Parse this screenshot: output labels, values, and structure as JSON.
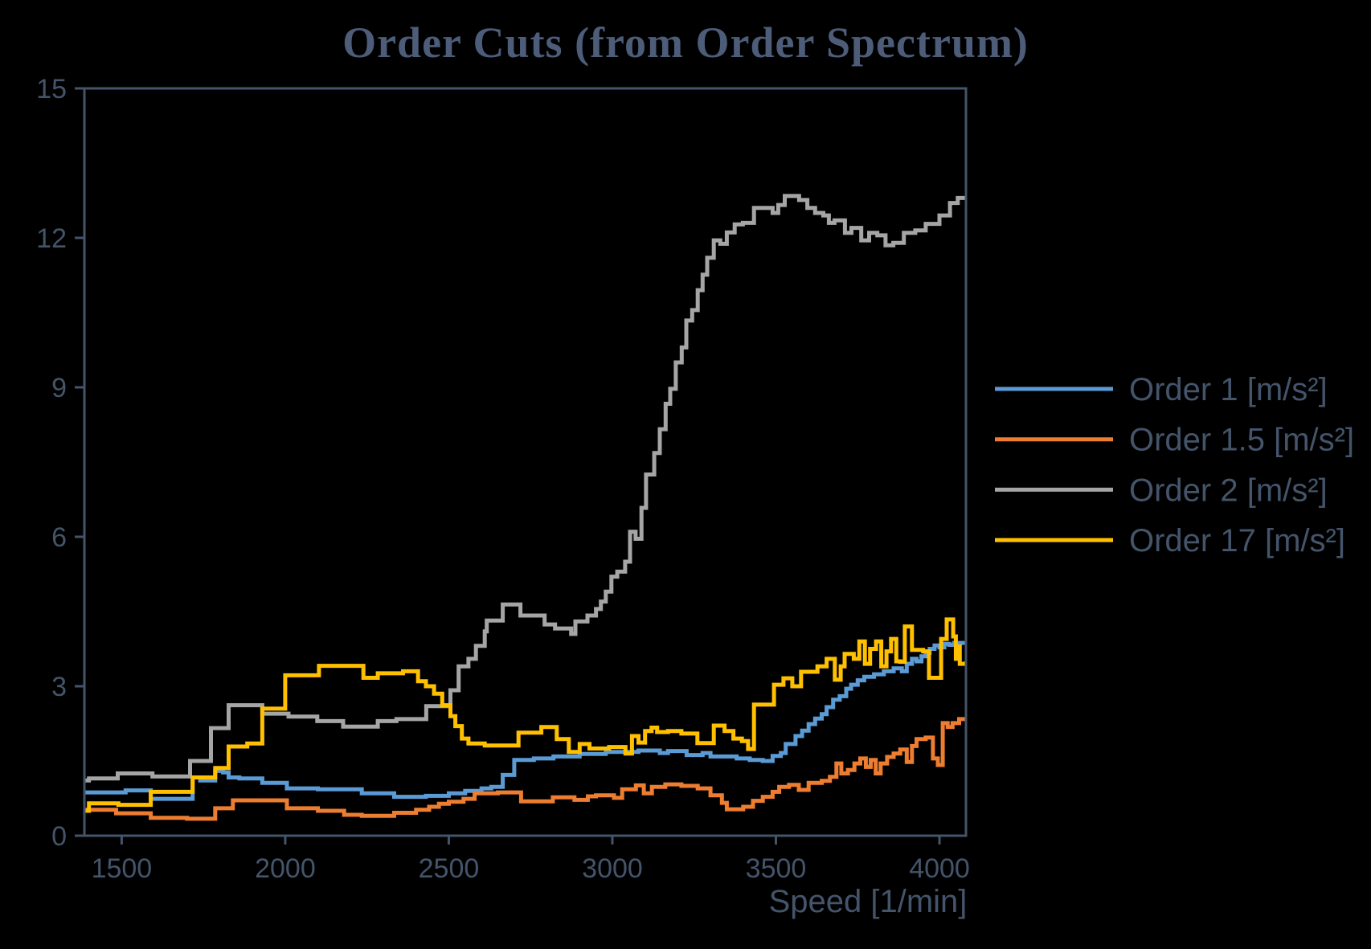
{
  "chart_data": {
    "type": "line",
    "step": true,
    "title": "Order Cuts (from Order Spectrum)",
    "xlabel": "Speed [1/min]",
    "ylabel": "",
    "xlim": [
      1386,
      4081
    ],
    "ylim": [
      0,
      15
    ],
    "x_ticks": [
      1500,
      2000,
      2500,
      3000,
      3500,
      4000
    ],
    "y_ticks": [
      0,
      3,
      6,
      9,
      12,
      15
    ],
    "grid": false,
    "legend_position": "right",
    "background_color": "#000000",
    "axis_color": "#44546A",
    "title_color": "#4D5C78",
    "series": [
      {
        "name": "Order 1 [m/s²]",
        "color": "#5B9BD5",
        "points": [
          [
            1386,
            0.87
          ],
          [
            1512,
            0.91
          ],
          [
            1589,
            0.74
          ],
          [
            1717,
            1.17
          ],
          [
            1740,
            1.11
          ],
          [
            1786,
            1.3
          ],
          [
            1810,
            1.27
          ],
          [
            1827,
            1.17
          ],
          [
            1860,
            1.15
          ],
          [
            1930,
            1.06
          ],
          [
            2005,
            0.95
          ],
          [
            2100,
            0.93
          ],
          [
            2234,
            0.85
          ],
          [
            2333,
            0.78
          ],
          [
            2430,
            0.8
          ],
          [
            2500,
            0.85
          ],
          [
            2550,
            0.9
          ],
          [
            2600,
            0.95
          ],
          [
            2630,
            0.98
          ],
          [
            2665,
            1.22
          ],
          [
            2700,
            1.52
          ],
          [
            2760,
            1.55
          ],
          [
            2820,
            1.59
          ],
          [
            2900,
            1.64
          ],
          [
            2980,
            1.68
          ],
          [
            3080,
            1.71
          ],
          [
            3145,
            1.66
          ],
          [
            3170,
            1.7
          ],
          [
            3227,
            1.62
          ],
          [
            3276,
            1.66
          ],
          [
            3300,
            1.59
          ],
          [
            3380,
            1.55
          ],
          [
            3420,
            1.52
          ],
          [
            3460,
            1.5
          ],
          [
            3490,
            1.6
          ],
          [
            3515,
            1.66
          ],
          [
            3530,
            1.84
          ],
          [
            3560,
            2.0
          ],
          [
            3580,
            2.11
          ],
          [
            3600,
            2.24
          ],
          [
            3620,
            2.35
          ],
          [
            3640,
            2.44
          ],
          [
            3655,
            2.58
          ],
          [
            3675,
            2.73
          ],
          [
            3695,
            2.8
          ],
          [
            3715,
            2.95
          ],
          [
            3730,
            3.03
          ],
          [
            3750,
            3.12
          ],
          [
            3770,
            3.19
          ],
          [
            3800,
            3.24
          ],
          [
            3830,
            3.3
          ],
          [
            3860,
            3.36
          ],
          [
            3885,
            3.3
          ],
          [
            3900,
            3.45
          ],
          [
            3916,
            3.55
          ],
          [
            3930,
            3.5
          ],
          [
            3945,
            3.6
          ],
          [
            3958,
            3.67
          ],
          [
            3970,
            3.75
          ],
          [
            3985,
            3.82
          ],
          [
            4000,
            3.78
          ],
          [
            4015,
            3.85
          ],
          [
            4030,
            3.83
          ],
          [
            4045,
            3.87
          ],
          [
            4081,
            3.9
          ]
        ]
      },
      {
        "name": "Order 1.5 [m/s²]",
        "color": "#ED7D31",
        "points": [
          [
            1386,
            0.52
          ],
          [
            1483,
            0.45
          ],
          [
            1589,
            0.36
          ],
          [
            1700,
            0.34
          ],
          [
            1786,
            0.55
          ],
          [
            1840,
            0.71
          ],
          [
            2005,
            0.55
          ],
          [
            2100,
            0.5
          ],
          [
            2180,
            0.42
          ],
          [
            2234,
            0.4
          ],
          [
            2333,
            0.46
          ],
          [
            2400,
            0.52
          ],
          [
            2440,
            0.58
          ],
          [
            2470,
            0.64
          ],
          [
            2500,
            0.68
          ],
          [
            2545,
            0.74
          ],
          [
            2579,
            0.85
          ],
          [
            2650,
            0.87
          ],
          [
            2721,
            0.69
          ],
          [
            2818,
            0.77
          ],
          [
            2884,
            0.72
          ],
          [
            2925,
            0.79
          ],
          [
            2950,
            0.81
          ],
          [
            3005,
            0.76
          ],
          [
            3030,
            0.93
          ],
          [
            3072,
            1.01
          ],
          [
            3096,
            0.85
          ],
          [
            3121,
            0.98
          ],
          [
            3162,
            1.03
          ],
          [
            3211,
            1.0
          ],
          [
            3261,
            0.95
          ],
          [
            3300,
            0.81
          ],
          [
            3335,
            0.66
          ],
          [
            3350,
            0.53
          ],
          [
            3400,
            0.58
          ],
          [
            3430,
            0.7
          ],
          [
            3460,
            0.78
          ],
          [
            3490,
            0.88
          ],
          [
            3510,
            0.98
          ],
          [
            3540,
            1.02
          ],
          [
            3570,
            0.92
          ],
          [
            3600,
            1.06
          ],
          [
            3640,
            1.1
          ],
          [
            3665,
            1.18
          ],
          [
            3685,
            1.45
          ],
          [
            3700,
            1.25
          ],
          [
            3720,
            1.32
          ],
          [
            3740,
            1.45
          ],
          [
            3758,
            1.55
          ],
          [
            3775,
            1.38
          ],
          [
            3790,
            1.52
          ],
          [
            3805,
            1.25
          ],
          [
            3820,
            1.45
          ],
          [
            3840,
            1.58
          ],
          [
            3860,
            1.65
          ],
          [
            3880,
            1.73
          ],
          [
            3900,
            1.48
          ],
          [
            3916,
            1.8
          ],
          [
            3930,
            1.94
          ],
          [
            3958,
            1.97
          ],
          [
            3980,
            1.55
          ],
          [
            3995,
            1.42
          ],
          [
            4010,
            2.26
          ],
          [
            4025,
            2.18
          ],
          [
            4040,
            2.26
          ],
          [
            4060,
            2.34
          ],
          [
            4081,
            2.34
          ]
        ]
      },
      {
        "name": "Order 2 [m/s²]",
        "color": "#A5A5A5",
        "points": [
          [
            1386,
            1.11
          ],
          [
            1400,
            1.15
          ],
          [
            1488,
            1.25
          ],
          [
            1594,
            1.19
          ],
          [
            1709,
            1.5
          ],
          [
            1773,
            2.16
          ],
          [
            1827,
            2.62
          ],
          [
            1930,
            2.45
          ],
          [
            2010,
            2.39
          ],
          [
            2098,
            2.3
          ],
          [
            2177,
            2.19
          ],
          [
            2283,
            2.3
          ],
          [
            2340,
            2.34
          ],
          [
            2431,
            2.6
          ],
          [
            2505,
            2.92
          ],
          [
            2530,
            3.4
          ],
          [
            2560,
            3.55
          ],
          [
            2583,
            3.81
          ],
          [
            2610,
            4.1
          ],
          [
            2616,
            4.32
          ],
          [
            2665,
            4.64
          ],
          [
            2719,
            4.42
          ],
          [
            2793,
            4.24
          ],
          [
            2825,
            4.16
          ],
          [
            2874,
            4.05
          ],
          [
            2887,
            4.3
          ],
          [
            2924,
            4.42
          ],
          [
            2950,
            4.55
          ],
          [
            2965,
            4.7
          ],
          [
            2980,
            4.9
          ],
          [
            2997,
            5.2
          ],
          [
            3015,
            5.3
          ],
          [
            3039,
            5.5
          ],
          [
            3054,
            6.1
          ],
          [
            3071,
            5.96
          ],
          [
            3089,
            6.58
          ],
          [
            3103,
            7.25
          ],
          [
            3128,
            7.68
          ],
          [
            3145,
            8.16
          ],
          [
            3163,
            8.67
          ],
          [
            3177,
            8.97
          ],
          [
            3194,
            9.5
          ],
          [
            3212,
            9.8
          ],
          [
            3226,
            10.34
          ],
          [
            3244,
            10.55
          ],
          [
            3261,
            10.95
          ],
          [
            3276,
            11.26
          ],
          [
            3290,
            11.6
          ],
          [
            3310,
            11.95
          ],
          [
            3330,
            11.88
          ],
          [
            3350,
            12.11
          ],
          [
            3374,
            12.27
          ],
          [
            3399,
            12.3
          ],
          [
            3433,
            12.6
          ],
          [
            3490,
            12.5
          ],
          [
            3507,
            12.66
          ],
          [
            3527,
            12.84
          ],
          [
            3571,
            12.76
          ],
          [
            3596,
            12.6
          ],
          [
            3620,
            12.5
          ],
          [
            3645,
            12.45
          ],
          [
            3662,
            12.3
          ],
          [
            3679,
            12.35
          ],
          [
            3711,
            12.1
          ],
          [
            3731,
            12.2
          ],
          [
            3761,
            11.95
          ],
          [
            3785,
            12.1
          ],
          [
            3810,
            12.05
          ],
          [
            3835,
            11.85
          ],
          [
            3859,
            11.9
          ],
          [
            3891,
            12.1
          ],
          [
            3926,
            12.15
          ],
          [
            3958,
            12.28
          ],
          [
            4000,
            12.45
          ],
          [
            4032,
            12.7
          ],
          [
            4056,
            12.8
          ],
          [
            4081,
            12.82
          ]
        ]
      },
      {
        "name": "Order 17 [m/s²]",
        "color": "#FFC000",
        "points": [
          [
            1386,
            0.5
          ],
          [
            1400,
            0.65
          ],
          [
            1490,
            0.62
          ],
          [
            1589,
            0.88
          ],
          [
            1717,
            1.17
          ],
          [
            1786,
            1.36
          ],
          [
            1827,
            1.79
          ],
          [
            1884,
            1.85
          ],
          [
            1930,
            2.55
          ],
          [
            2000,
            3.22
          ],
          [
            2103,
            3.41
          ],
          [
            2239,
            3.17
          ],
          [
            2283,
            3.26
          ],
          [
            2360,
            3.3
          ],
          [
            2406,
            3.1
          ],
          [
            2430,
            3.0
          ],
          [
            2455,
            2.85
          ],
          [
            2480,
            2.62
          ],
          [
            2505,
            2.4
          ],
          [
            2520,
            2.2
          ],
          [
            2540,
            1.95
          ],
          [
            2560,
            1.85
          ],
          [
            2610,
            1.81
          ],
          [
            2713,
            2.07
          ],
          [
            2783,
            2.18
          ],
          [
            2830,
            1.94
          ],
          [
            2867,
            1.68
          ],
          [
            2900,
            1.84
          ],
          [
            2930,
            1.75
          ],
          [
            2990,
            1.78
          ],
          [
            3040,
            1.65
          ],
          [
            3060,
            2.0
          ],
          [
            3080,
            1.87
          ],
          [
            3100,
            2.1
          ],
          [
            3120,
            2.17
          ],
          [
            3137,
            2.08
          ],
          [
            3170,
            2.1
          ],
          [
            3211,
            2.05
          ],
          [
            3260,
            1.86
          ],
          [
            3310,
            2.21
          ],
          [
            3343,
            2.1
          ],
          [
            3370,
            1.95
          ],
          [
            3396,
            1.9
          ],
          [
            3415,
            1.74
          ],
          [
            3433,
            2.63
          ],
          [
            3494,
            3.03
          ],
          [
            3523,
            3.16
          ],
          [
            3550,
            3.0
          ],
          [
            3577,
            3.29
          ],
          [
            3627,
            3.4
          ],
          [
            3655,
            3.55
          ],
          [
            3680,
            3.13
          ],
          [
            3698,
            3.4
          ],
          [
            3710,
            3.65
          ],
          [
            3738,
            3.55
          ],
          [
            3755,
            3.9
          ],
          [
            3772,
            3.45
          ],
          [
            3788,
            3.75
          ],
          [
            3806,
            3.9
          ],
          [
            3822,
            3.4
          ],
          [
            3838,
            3.7
          ],
          [
            3852,
            3.95
          ],
          [
            3868,
            3.5
          ],
          [
            3880,
            3.49
          ],
          [
            3894,
            4.2
          ],
          [
            3916,
            3.73
          ],
          [
            3950,
            3.7
          ],
          [
            3968,
            3.17
          ],
          [
            4005,
            3.95
          ],
          [
            4022,
            4.34
          ],
          [
            4042,
            4.0
          ],
          [
            4050,
            3.55
          ],
          [
            4056,
            3.8
          ],
          [
            4062,
            3.45
          ],
          [
            4081,
            3.5
          ]
        ]
      }
    ]
  }
}
